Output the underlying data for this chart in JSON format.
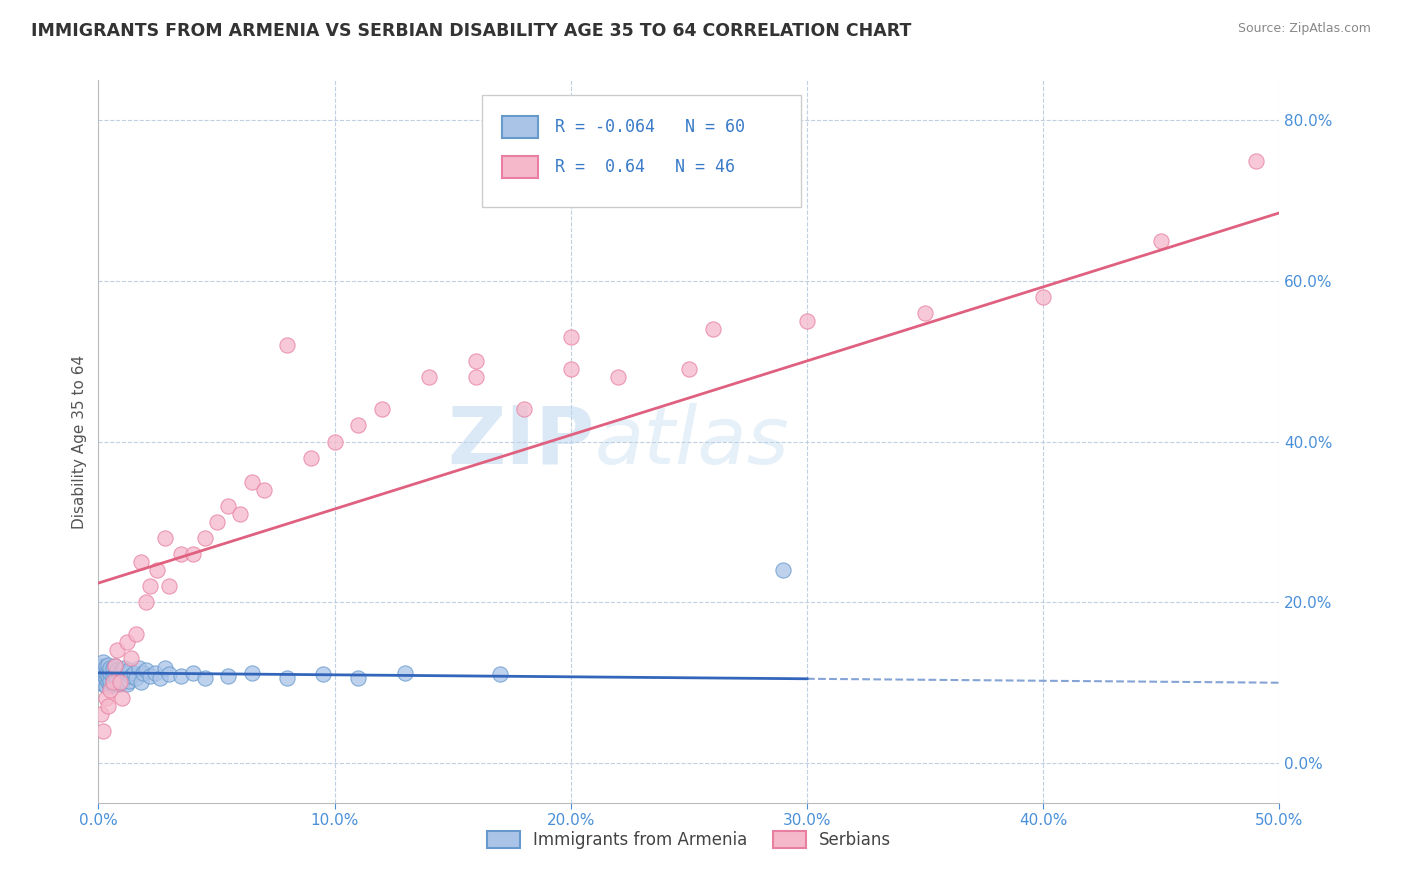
{
  "title": "IMMIGRANTS FROM ARMENIA VS SERBIAN DISABILITY AGE 35 TO 64 CORRELATION CHART",
  "source": "Source: ZipAtlas.com",
  "ylabel": "Disability Age 35 to 64",
  "xmin": 0.0,
  "xmax": 0.5,
  "ymin": -0.05,
  "ymax": 0.85,
  "armenia_R": -0.064,
  "armenia_N": 60,
  "serbian_R": 0.64,
  "serbian_N": 46,
  "armenia_color": "#aac4e8",
  "serbian_color": "#f5b8cb",
  "armenia_edge_color": "#6699cc",
  "serbian_edge_color": "#e87fa0",
  "armenia_line_color": "#3366bb",
  "serbian_line_color": "#e06080",
  "background_color": "#ffffff",
  "grid_color": "#c0d0e0",
  "watermark_zip": "ZIP",
  "watermark_atlas": "atlas",
  "legend_label_armenia": "Immigrants from Armenia",
  "legend_label_serbian": "Serbians",
  "armenia_scatter_x": [
    0.001,
    0.001,
    0.001,
    0.002,
    0.002,
    0.002,
    0.002,
    0.003,
    0.003,
    0.003,
    0.003,
    0.004,
    0.004,
    0.004,
    0.004,
    0.005,
    0.005,
    0.005,
    0.005,
    0.006,
    0.006,
    0.006,
    0.007,
    0.007,
    0.007,
    0.008,
    0.008,
    0.009,
    0.009,
    0.01,
    0.01,
    0.011,
    0.011,
    0.012,
    0.012,
    0.013,
    0.013,
    0.014,
    0.015,
    0.016,
    0.017,
    0.018,
    0.019,
    0.02,
    0.022,
    0.024,
    0.026,
    0.028,
    0.03,
    0.035,
    0.04,
    0.045,
    0.055,
    0.065,
    0.08,
    0.095,
    0.11,
    0.13,
    0.17,
    0.29
  ],
  "armenia_scatter_y": [
    0.1,
    0.105,
    0.12,
    0.098,
    0.11,
    0.115,
    0.125,
    0.095,
    0.105,
    0.112,
    0.12,
    0.1,
    0.108,
    0.115,
    0.122,
    0.095,
    0.102,
    0.112,
    0.118,
    0.098,
    0.108,
    0.118,
    0.1,
    0.11,
    0.12,
    0.102,
    0.115,
    0.098,
    0.112,
    0.1,
    0.115,
    0.105,
    0.118,
    0.098,
    0.112,
    0.102,
    0.115,
    0.108,
    0.112,
    0.105,
    0.118,
    0.1,
    0.112,
    0.115,
    0.108,
    0.112,
    0.105,
    0.118,
    0.11,
    0.108,
    0.112,
    0.105,
    0.108,
    0.112,
    0.105,
    0.11,
    0.105,
    0.112,
    0.11,
    0.24
  ],
  "serbian_scatter_x": [
    0.001,
    0.002,
    0.003,
    0.004,
    0.005,
    0.006,
    0.007,
    0.008,
    0.009,
    0.01,
    0.012,
    0.014,
    0.016,
    0.018,
    0.02,
    0.022,
    0.025,
    0.028,
    0.03,
    0.035,
    0.04,
    0.045,
    0.05,
    0.055,
    0.06,
    0.065,
    0.07,
    0.08,
    0.09,
    0.1,
    0.11,
    0.12,
    0.14,
    0.16,
    0.18,
    0.2,
    0.22,
    0.26,
    0.3,
    0.35,
    0.4,
    0.45,
    0.49,
    0.16,
    0.2,
    0.25
  ],
  "serbian_scatter_y": [
    0.06,
    0.04,
    0.08,
    0.07,
    0.09,
    0.1,
    0.12,
    0.14,
    0.1,
    0.08,
    0.15,
    0.13,
    0.16,
    0.25,
    0.2,
    0.22,
    0.24,
    0.28,
    0.22,
    0.26,
    0.26,
    0.28,
    0.3,
    0.32,
    0.31,
    0.35,
    0.34,
    0.52,
    0.38,
    0.4,
    0.42,
    0.44,
    0.48,
    0.5,
    0.44,
    0.53,
    0.48,
    0.54,
    0.55,
    0.56,
    0.58,
    0.65,
    0.75,
    0.48,
    0.49,
    0.49
  ],
  "ytick_vals": [
    0.0,
    0.2,
    0.4,
    0.6,
    0.8
  ],
  "xtick_vals": [
    0.0,
    0.1,
    0.2,
    0.3,
    0.4,
    0.5
  ]
}
